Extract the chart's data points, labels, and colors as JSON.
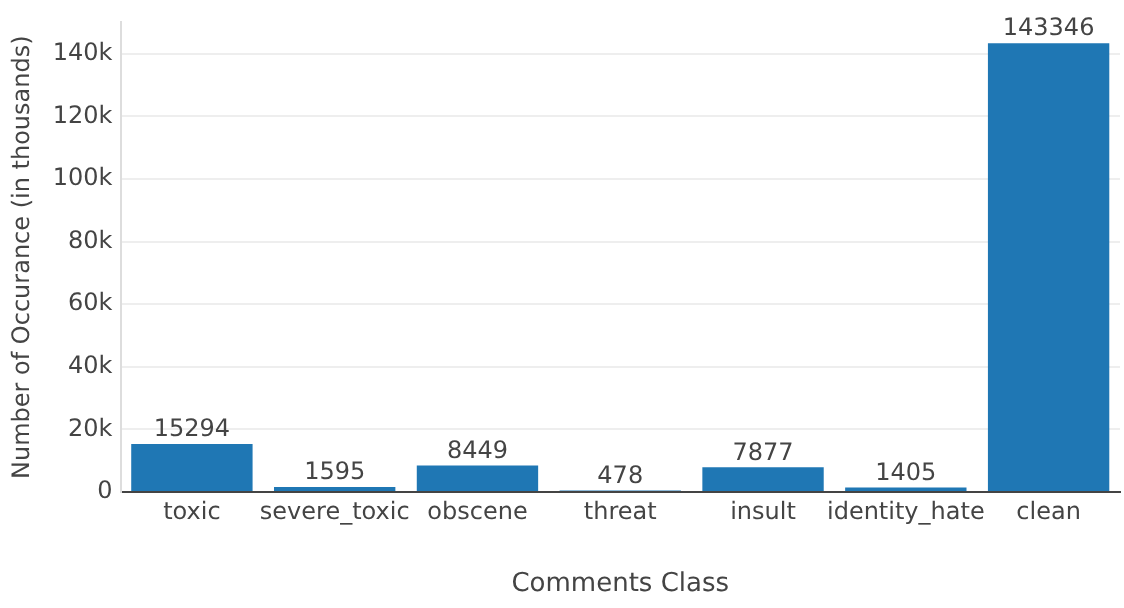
{
  "chart_data": {
    "type": "bar",
    "xlabel": "Comments Class",
    "ylabel": "Number of Occurance (in thousands)",
    "categories": [
      "toxic",
      "severe_toxic",
      "obscene",
      "threat",
      "insult",
      "identity_hate",
      "clean"
    ],
    "values": [
      15294,
      1595,
      8449,
      478,
      7877,
      1405,
      143346
    ],
    "color": "#1f77b4",
    "ylim": [
      0,
      150000
    ],
    "yticks": [
      {
        "value": 0,
        "label": "0"
      },
      {
        "value": 20000,
        "label": "20k"
      },
      {
        "value": 40000,
        "label": "40k"
      },
      {
        "value": 60000,
        "label": "60k"
      },
      {
        "value": 80000,
        "label": "80k"
      },
      {
        "value": 100000,
        "label": "100k"
      },
      {
        "value": 120000,
        "label": "120k"
      },
      {
        "value": 140000,
        "label": "140k"
      }
    ],
    "grid": "y",
    "data_labels": true,
    "legend": false
  }
}
